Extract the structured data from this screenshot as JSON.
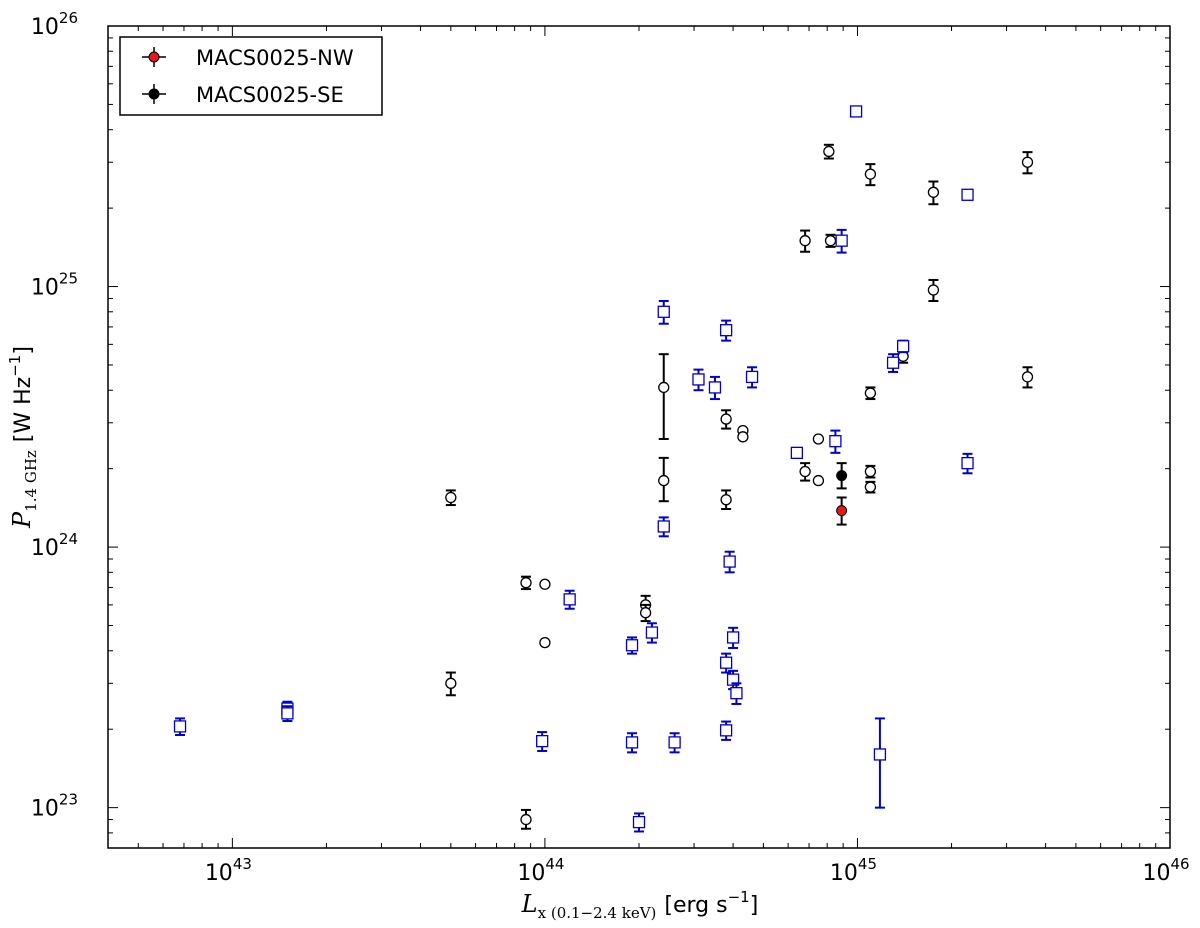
{
  "chart_data": {
    "type": "scatter",
    "x_scale": "log",
    "y_scale": "log",
    "xlim": [
      4e+42,
      1e+46
    ],
    "ylim": [
      7e+22,
      1e+26
    ],
    "grid": false,
    "legend_position": "top-left",
    "xlabel": {
      "symbol": "L",
      "subscript": "x (0.1−2.4 keV)",
      "unit_pre": "[erg s",
      "unit_exp": "−1",
      "unit_post": "]"
    },
    "ylabel": {
      "symbol": "P",
      "subscript": "1.4 GHz",
      "unit_pre": "[W Hz",
      "unit_exp": "−1",
      "unit_post": "]"
    },
    "x_ticks": [
      {
        "value": 1e+43,
        "base": "10",
        "exp": "43"
      },
      {
        "value": 1e+44,
        "base": "10",
        "exp": "44"
      },
      {
        "value": 1e+45,
        "base": "10",
        "exp": "45"
      },
      {
        "value": 1e+46,
        "base": "10",
        "exp": "46"
      }
    ],
    "y_ticks": [
      {
        "value": 1e+23,
        "base": "10",
        "exp": "23"
      },
      {
        "value": 1e+24,
        "base": "10",
        "exp": "24"
      },
      {
        "value": 1e+25,
        "base": "10",
        "exp": "25"
      },
      {
        "value": 1e+26,
        "base": "10",
        "exp": "26"
      }
    ],
    "legend": [
      {
        "name": "MACS0025-NW",
        "color": "#e31a1c",
        "marker": "filled-circle"
      },
      {
        "name": "MACS0025-SE",
        "color": "#000000",
        "marker": "filled-circle"
      }
    ],
    "series": [
      {
        "name": "MACS0025-NW",
        "marker": "filled-circle",
        "color": "#e31a1c",
        "points": [
          {
            "x": 8.9e+44,
            "y": 1.38e+24,
            "ylo": 1.22e+24,
            "yhi": 1.55e+24
          }
        ]
      },
      {
        "name": "MACS0025-SE",
        "marker": "filled-circle",
        "color": "#000000",
        "points": [
          {
            "x": 8.9e+44,
            "y": 1.88e+24,
            "ylo": 1.68e+24,
            "yhi": 2.1e+24
          }
        ]
      },
      {
        "marker": "open-circle",
        "color": "#000000",
        "points": [
          {
            "x": 8.1e+44,
            "y": 3.3e+25,
            "ylo": 3.1e+25,
            "yhi": 3.5e+25
          },
          {
            "x": 1.1e+45,
            "y": 2.7e+25,
            "ylo": 2.45e+25,
            "yhi": 2.95e+25
          },
          {
            "x": 1.75e+45,
            "y": 2.3e+25,
            "ylo": 2.07e+25,
            "yhi": 2.53e+25
          },
          {
            "x": 3.5e+45,
            "y": 3e+25,
            "ylo": 2.72e+25,
            "yhi": 3.28e+25
          },
          {
            "x": 6.8e+44,
            "y": 1.5e+25,
            "ylo": 1.36e+25,
            "yhi": 1.64e+25
          },
          {
            "x": 8.2e+44,
            "y": 1.5e+25,
            "ylo": 1.42e+25,
            "yhi": 1.58e+25
          },
          {
            "x": 1.75e+45,
            "y": 9.7e+24,
            "ylo": 8.8e+24,
            "yhi": 1.06e+25
          },
          {
            "x": 1.4e+45,
            "y": 5.4e+24,
            "ylo": 5.1e+24,
            "yhi": 5.7e+24
          },
          {
            "x": 3.5e+45,
            "y": 4.5e+24,
            "ylo": 4.1e+24,
            "yhi": 4.9e+24
          },
          {
            "x": 1.1e+45,
            "y": 3.9e+24,
            "ylo": 3.7e+24,
            "yhi": 4.1e+24
          },
          {
            "x": 2.4e+44,
            "y": 4.1e+24,
            "ylo": 2.6e+24,
            "yhi": 5.5e+24
          },
          {
            "x": 3.8e+44,
            "y": 3.1e+24,
            "ylo": 2.85e+24,
            "yhi": 3.35e+24
          },
          {
            "x": 4.3e+44,
            "y": 2.8e+24,
            "ylo": 2.8e+24,
            "yhi": 2.8e+24
          },
          {
            "x": 4.3e+44,
            "y": 2.65e+24,
            "ylo": 2.65e+24,
            "yhi": 2.65e+24
          },
          {
            "x": 7.5e+44,
            "y": 2.6e+24,
            "ylo": 2.6e+24,
            "yhi": 2.6e+24
          },
          {
            "x": 6.8e+44,
            "y": 1.95e+24,
            "ylo": 1.8e+24,
            "yhi": 2.1e+24
          },
          {
            "x": 7.5e+44,
            "y": 1.8e+24,
            "ylo": 1.8e+24,
            "yhi": 1.8e+24
          },
          {
            "x": 1.1e+45,
            "y": 1.95e+24,
            "ylo": 1.85e+24,
            "yhi": 2.05e+24
          },
          {
            "x": 1.1e+45,
            "y": 1.7e+24,
            "ylo": 1.62e+24,
            "yhi": 1.78e+24
          },
          {
            "x": 2.4e+44,
            "y": 1.8e+24,
            "ylo": 1.5e+24,
            "yhi": 2.2e+24
          },
          {
            "x": 3.8e+44,
            "y": 1.52e+24,
            "ylo": 1.4e+24,
            "yhi": 1.65e+24
          },
          {
            "x": 5e+43,
            "y": 1.55e+24,
            "ylo": 1.45e+24,
            "yhi": 1.65e+24
          },
          {
            "x": 8.7e+43,
            "y": 7.3e+23,
            "ylo": 6.9e+23,
            "yhi": 7.7e+23
          },
          {
            "x": 1e+44,
            "y": 7.2e+23,
            "ylo": 7.2e+23,
            "yhi": 7.2e+23
          },
          {
            "x": 2.1e+44,
            "y": 6e+23,
            "ylo": 5.5e+23,
            "yhi": 6.5e+23
          },
          {
            "x": 2.1e+44,
            "y": 5.6e+23,
            "ylo": 5.2e+23,
            "yhi": 6e+23
          },
          {
            "x": 1e+44,
            "y": 4.3e+23,
            "ylo": 4.3e+23,
            "yhi": 4.3e+23
          },
          {
            "x": 5e+43,
            "y": 3e+23,
            "ylo": 2.7e+23,
            "yhi": 3.3e+23
          },
          {
            "x": 8.7e+43,
            "y": 9e+22,
            "ylo": 8.3e+22,
            "yhi": 9.8e+22
          }
        ]
      },
      {
        "marker": "open-square",
        "color": "#0000cc",
        "points": [
          {
            "x": 9.9e+44,
            "y": 4.7e+25,
            "ylo": 4.5e+25,
            "yhi": 4.9e+25
          },
          {
            "x": 2.25e+45,
            "y": 2.25e+25,
            "ylo": 2.25e+25,
            "yhi": 2.25e+25
          },
          {
            "x": 8.9e+44,
            "y": 1.5e+25,
            "ylo": 1.35e+25,
            "yhi": 1.65e+25
          },
          {
            "x": 2.4e+44,
            "y": 8e+24,
            "ylo": 7.2e+24,
            "yhi": 8.8e+24
          },
          {
            "x": 3.8e+44,
            "y": 6.8e+24,
            "ylo": 6.2e+24,
            "yhi": 7.4e+24
          },
          {
            "x": 1.4e+45,
            "y": 5.9e+24,
            "ylo": 5.6e+24,
            "yhi": 6.2e+24
          },
          {
            "x": 1.3e+45,
            "y": 5.1e+24,
            "ylo": 4.7e+24,
            "yhi": 5.5e+24
          },
          {
            "x": 4.6e+44,
            "y": 4.5e+24,
            "ylo": 4.1e+24,
            "yhi": 4.9e+24
          },
          {
            "x": 3.1e+44,
            "y": 4.4e+24,
            "ylo": 4e+24,
            "yhi": 4.8e+24
          },
          {
            "x": 3.5e+44,
            "y": 4.1e+24,
            "ylo": 3.7e+24,
            "yhi": 4.5e+24
          },
          {
            "x": 8.5e+44,
            "y": 2.55e+24,
            "ylo": 2.3e+24,
            "yhi": 2.8e+24
          },
          {
            "x": 6.4e+44,
            "y": 2.3e+24,
            "ylo": 2.3e+24,
            "yhi": 2.3e+24
          },
          {
            "x": 2.25e+45,
            "y": 2.1e+24,
            "ylo": 1.92e+24,
            "yhi": 2.28e+24
          },
          {
            "x": 2.4e+44,
            "y": 1.2e+24,
            "ylo": 1.1e+24,
            "yhi": 1.3e+24
          },
          {
            "x": 3.9e+44,
            "y": 8.8e+23,
            "ylo": 8e+23,
            "yhi": 9.6e+23
          },
          {
            "x": 1.2e+44,
            "y": 6.3e+23,
            "ylo": 5.8e+23,
            "yhi": 6.8e+23
          },
          {
            "x": 2.2e+44,
            "y": 4.7e+23,
            "ylo": 4.3e+23,
            "yhi": 5.1e+23
          },
          {
            "x": 4e+44,
            "y": 4.5e+23,
            "ylo": 4.1e+23,
            "yhi": 4.9e+23
          },
          {
            "x": 1.9e+44,
            "y": 4.2e+23,
            "ylo": 3.9e+23,
            "yhi": 4.5e+23
          },
          {
            "x": 3.8e+44,
            "y": 3.6e+23,
            "ylo": 3.3e+23,
            "yhi": 3.9e+23
          },
          {
            "x": 4e+44,
            "y": 3.1e+23,
            "ylo": 2.85e+23,
            "yhi": 3.35e+23
          },
          {
            "x": 4.1e+44,
            "y": 2.75e+23,
            "ylo": 2.5e+23,
            "yhi": 3e+23
          },
          {
            "x": 1.5e+43,
            "y": 2.4e+23,
            "ylo": 2.25e+23,
            "yhi": 2.55e+23
          },
          {
            "x": 1.5e+43,
            "y": 2.3e+23,
            "ylo": 2.15e+23,
            "yhi": 2.45e+23
          },
          {
            "x": 6.8e+42,
            "y": 2.05e+23,
            "ylo": 1.9e+23,
            "yhi": 2.2e+23
          },
          {
            "x": 3.8e+44,
            "y": 1.98e+23,
            "ylo": 1.82e+23,
            "yhi": 2.14e+23
          },
          {
            "x": 9.8e+43,
            "y": 1.8e+23,
            "ylo": 1.65e+23,
            "yhi": 1.95e+23
          },
          {
            "x": 1.9e+44,
            "y": 1.78e+23,
            "ylo": 1.63e+23,
            "yhi": 1.93e+23
          },
          {
            "x": 2.6e+44,
            "y": 1.78e+23,
            "ylo": 1.63e+23,
            "yhi": 1.93e+23
          },
          {
            "x": 1.18e+45,
            "y": 1.6e+23,
            "ylo": 1e+23,
            "yhi": 2.2e+23
          },
          {
            "x": 2e+44,
            "y": 8.8e+22,
            "ylo": 8.1e+22,
            "yhi": 9.5e+22
          }
        ]
      }
    ]
  }
}
